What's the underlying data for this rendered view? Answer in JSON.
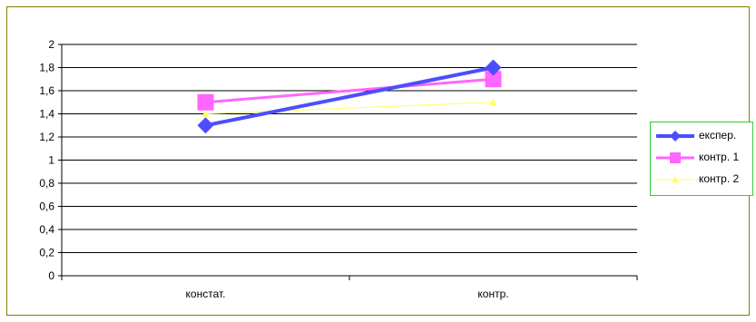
{
  "chart_data": {
    "type": "line",
    "categories": [
      "констат.",
      "контр."
    ],
    "series": [
      {
        "name": "експер.",
        "values": [
          1.3,
          1.8
        ],
        "color": "#4d4dff",
        "marker": "diamond"
      },
      {
        "name": "контр. 1",
        "values": [
          1.5,
          1.7
        ],
        "color": "#ff66ff",
        "marker": "square"
      },
      {
        "name": "контр. 2",
        "values": [
          1.4,
          1.5
        ],
        "color": "#ffff66",
        "marker": "triangle"
      }
    ],
    "ylim": [
      0,
      2
    ],
    "yticks": [
      "0",
      "0,2",
      "0,4",
      "0,6",
      "0,8",
      "1",
      "1,2",
      "1,4",
      "1,6",
      "1,8",
      "2"
    ],
    "grid": true,
    "legend_position": "right"
  }
}
